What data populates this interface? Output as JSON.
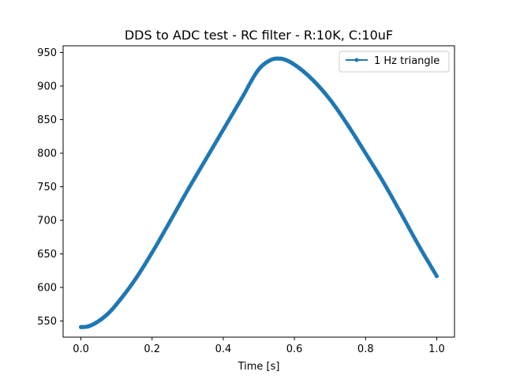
{
  "chart_data": {
    "type": "line",
    "title": "DDS to ADC test - RC filter - R:10K, C:10uF",
    "xlabel": "Time [s]",
    "ylabel": "",
    "xlim": [
      -0.05,
      1.05
    ],
    "ylim": [
      526,
      960
    ],
    "xticks": [
      0.0,
      0.2,
      0.4,
      0.6,
      0.8,
      1.0
    ],
    "xtick_labels": [
      "0.0",
      "0.2",
      "0.4",
      "0.6",
      "0.8",
      "1.0"
    ],
    "yticks": [
      550,
      600,
      650,
      700,
      750,
      800,
      850,
      900,
      950
    ],
    "ytick_labels": [
      "550",
      "600",
      "650",
      "700",
      "750",
      "800",
      "850",
      "900",
      "950"
    ],
    "grid": false,
    "legend": {
      "position": "top-right"
    },
    "series": [
      {
        "name": "1 Hz triangle",
        "color": "#1f77b4",
        "marker": "point",
        "x": [
          0.0,
          0.02,
          0.05,
          0.08,
          0.1,
          0.15,
          0.2,
          0.25,
          0.3,
          0.35,
          0.4,
          0.45,
          0.5,
          0.53,
          0.55,
          0.57,
          0.6,
          0.65,
          0.7,
          0.75,
          0.8,
          0.85,
          0.9,
          0.95,
          1.0
        ],
        "y": [
          541,
          542,
          550,
          563,
          575,
          610,
          652,
          698,
          745,
          790,
          835,
          880,
          925,
          938,
          941,
          940,
          932,
          910,
          880,
          842,
          800,
          757,
          710,
          662,
          617
        ]
      }
    ]
  }
}
